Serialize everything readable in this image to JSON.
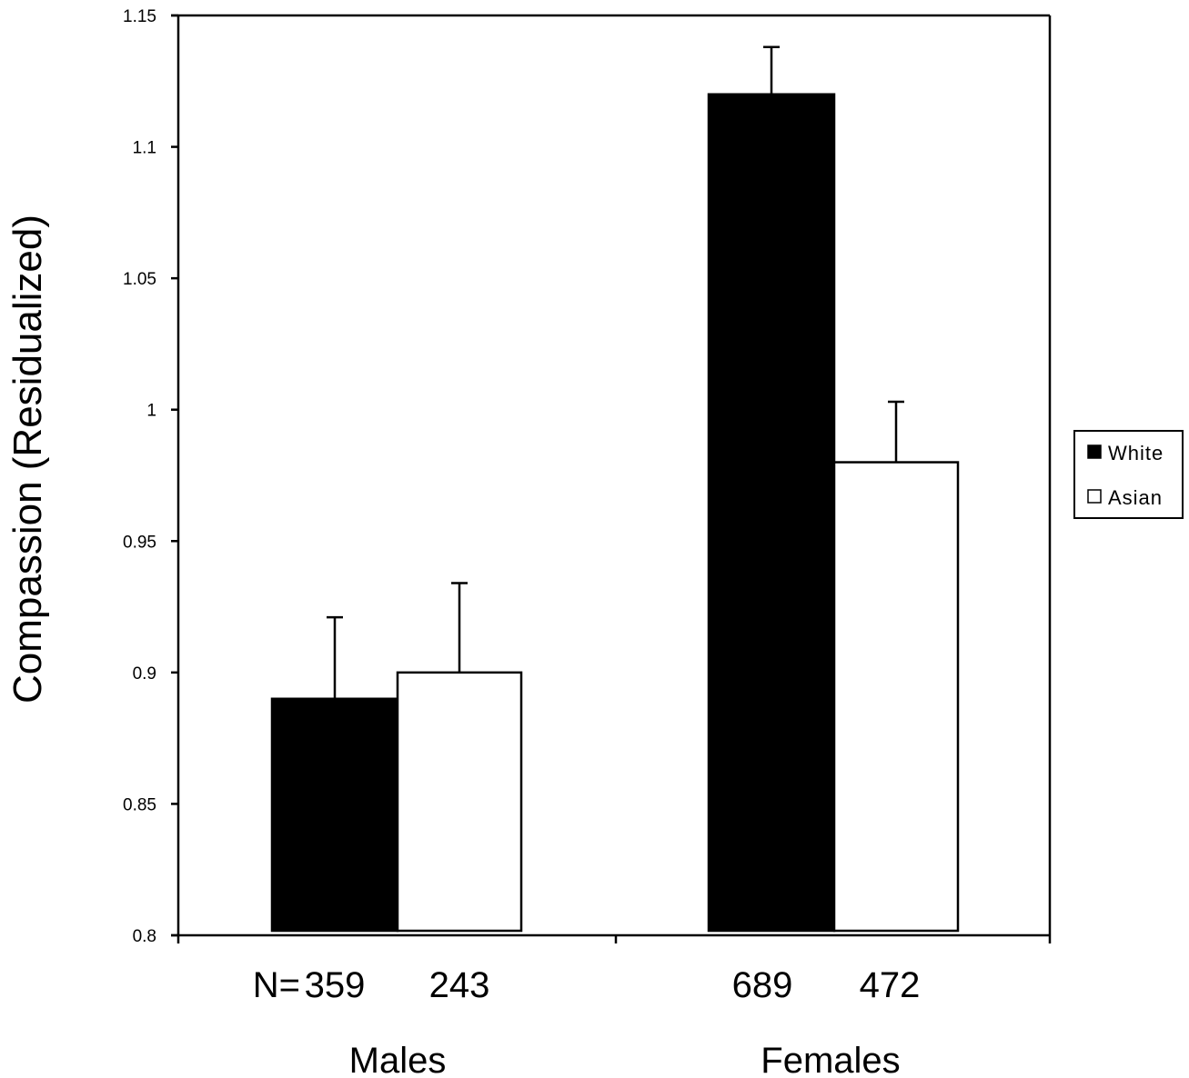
{
  "chart_data": {
    "type": "bar",
    "title": "",
    "xlabel": "",
    "ylabel": "Compassion (Residualized)",
    "ylim": [
      0.8,
      1.15
    ],
    "yticks": [
      0.8,
      0.85,
      0.9,
      0.95,
      1,
      1.05,
      1.1,
      1.15
    ],
    "ytick_labels": [
      "0.8",
      "0.85",
      "0.9",
      "0.95",
      "1",
      "1.05",
      "1.1",
      "1.15"
    ],
    "grid": false,
    "categories": [
      "Males",
      "Females"
    ],
    "series": [
      {
        "name": "White",
        "color": "#000000",
        "values": [
          0.89,
          1.12
        ],
        "error_upper": [
          0.921,
          1.138
        ],
        "n": [
          "359",
          "689"
        ]
      },
      {
        "name": "Asian",
        "color": "#ffffff",
        "values": [
          0.9,
          0.98
        ],
        "error_upper": [
          0.934,
          1.003
        ],
        "n": [
          "243",
          "472"
        ]
      }
    ],
    "n_prefix": "N= ",
    "legend": {
      "position": "right",
      "entries": [
        "White",
        "Asian"
      ]
    }
  }
}
